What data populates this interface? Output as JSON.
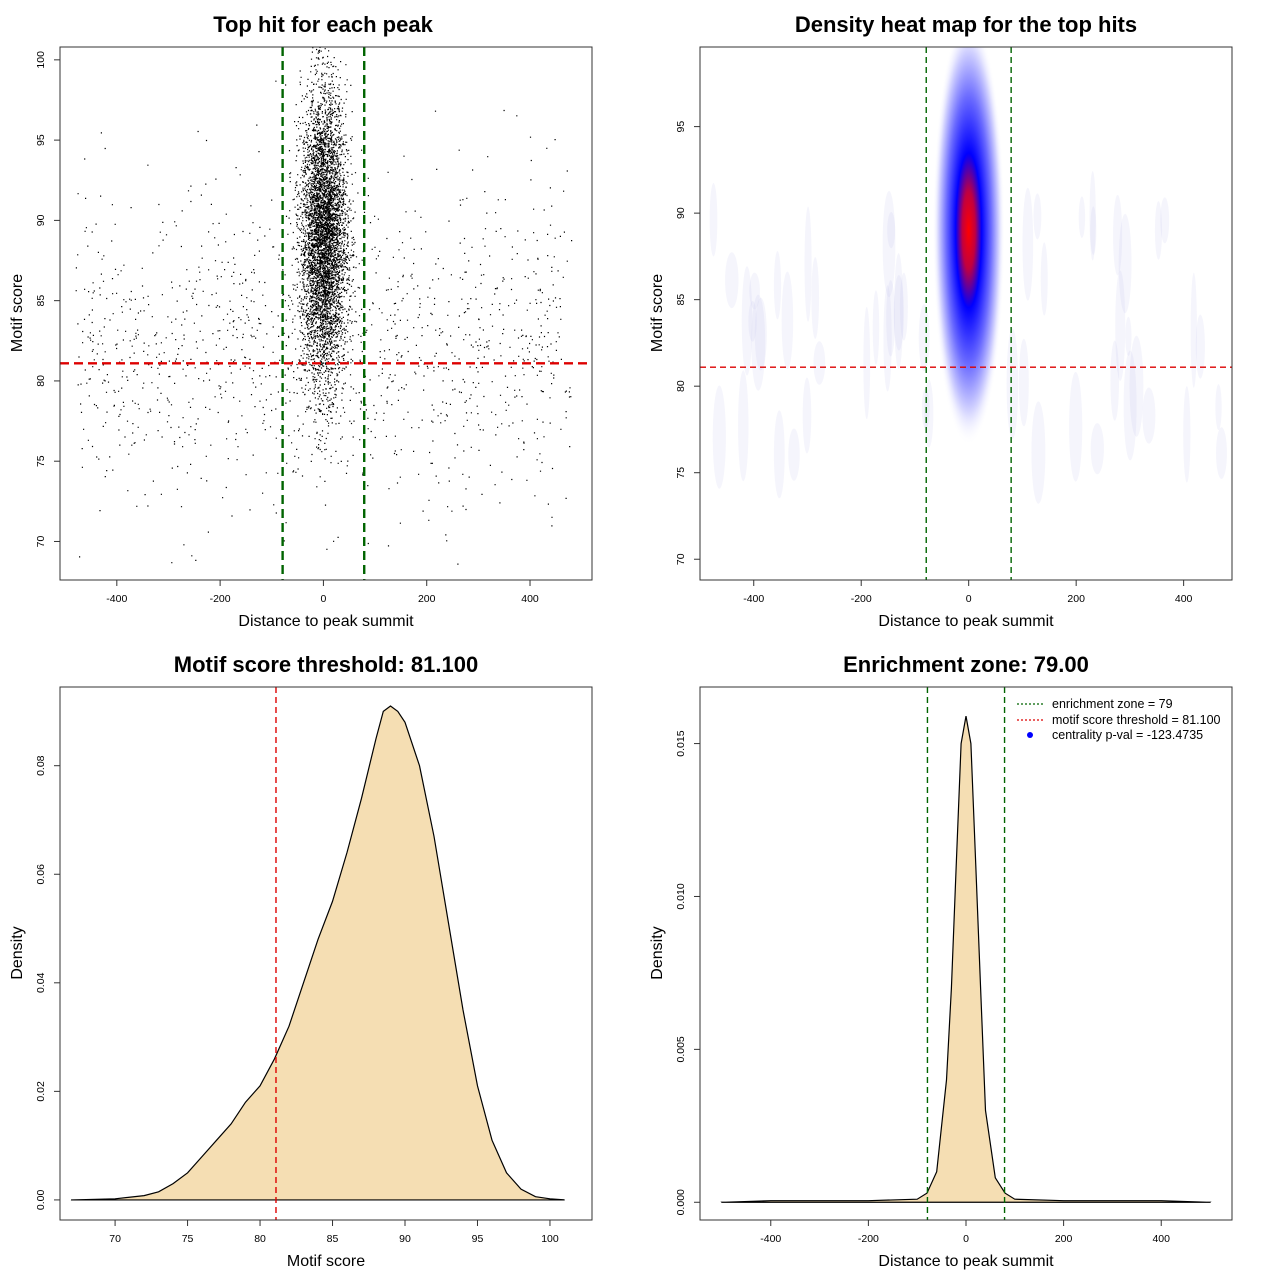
{
  "chart_data": [
    {
      "type": "scatter",
      "title": "Top hit for each peak",
      "xlabel": "Distance to peak summit",
      "ylabel": "Motif score",
      "xlim": [
        -510,
        520
      ],
      "ylim": [
        67.6,
        100.8
      ],
      "xticks": [
        -400,
        -200,
        0,
        200,
        400
      ],
      "yticks": [
        70,
        75,
        80,
        85,
        90,
        95,
        100
      ],
      "vlines": [
        -79,
        79
      ],
      "hline": 81.1,
      "vline_color": "#006400",
      "hline_color": "#dd0000",
      "point_color": "#000000",
      "background_cloud": {
        "x_range": [
          -480,
          480
        ],
        "y_mean": 82,
        "y_sd": 5
      },
      "central_cloud": {
        "x_mean": 0,
        "x_sd": 22,
        "y_mean": 89,
        "y_sd": 4.5
      }
    },
    {
      "type": "heatmap",
      "title": "Density heat map for the top hits",
      "xlabel": "Distance to peak summit",
      "ylabel": "Motif score",
      "xlim": [
        -500,
        490
      ],
      "ylim": [
        68.8,
        99.6
      ],
      "xticks": [
        -400,
        -200,
        0,
        200,
        400
      ],
      "yticks": [
        70,
        75,
        80,
        85,
        90,
        95
      ],
      "vlines": [
        -79,
        79
      ],
      "hline": 81.1,
      "peak": {
        "x": 0,
        "y": 89
      },
      "colors": [
        "#ffffff",
        "#0000ff",
        "#ff0000"
      ]
    },
    {
      "type": "area",
      "title": "Motif score threshold: 81.100",
      "xlabel": "Motif score",
      "ylabel": "Density",
      "xlim": [
        66.2,
        102.9
      ],
      "ylim": [
        -0.0037,
        0.0945
      ],
      "xticks": [
        70,
        75,
        80,
        85,
        90,
        95,
        100
      ],
      "yticks": [
        "0.00",
        "0.02",
        "0.04",
        "0.06",
        "0.08"
      ],
      "ytick_values": [
        0,
        0.02,
        0.04,
        0.06,
        0.08
      ],
      "vline": 81.1,
      "fill_color": "#f5deb3",
      "x": [
        67,
        70,
        72,
        73,
        74,
        75,
        76,
        77,
        78,
        79,
        80,
        81,
        82,
        83,
        84,
        85,
        86,
        87,
        88,
        88.5,
        89,
        89.5,
        90,
        91,
        92,
        93,
        94,
        95,
        96,
        97,
        98,
        99,
        100,
        101
      ],
      "y": [
        0,
        0.0002,
        0.0008,
        0.0015,
        0.003,
        0.005,
        0.008,
        0.011,
        0.014,
        0.018,
        0.021,
        0.026,
        0.032,
        0.04,
        0.048,
        0.055,
        0.064,
        0.074,
        0.085,
        0.09,
        0.091,
        0.09,
        0.088,
        0.08,
        0.067,
        0.051,
        0.035,
        0.021,
        0.011,
        0.005,
        0.002,
        0.0006,
        0.0002,
        0
      ]
    },
    {
      "type": "area",
      "title": "Enrichment zone: 79.00",
      "xlabel": "Distance to peak summit",
      "ylabel": "Density",
      "xlim": [
        -545,
        545
      ],
      "ylim": [
        -0.00058,
        0.01685
      ],
      "xticks": [
        -400,
        -200,
        0,
        200,
        400
      ],
      "yticks": [
        "0.000",
        "0.005",
        "0.010",
        "0.015"
      ],
      "ytick_values": [
        0,
        0.005,
        0.01,
        0.015
      ],
      "vlines": [
        -79,
        79
      ],
      "fill_color": "#f5deb3",
      "x": [
        -500,
        -400,
        -200,
        -100,
        -80,
        -60,
        -40,
        -30,
        -20,
        -10,
        0,
        10,
        20,
        30,
        40,
        60,
        80,
        100,
        200,
        400,
        500
      ],
      "y": [
        0,
        5e-05,
        5e-05,
        0.0001,
        0.0003,
        0.001,
        0.004,
        0.007,
        0.011,
        0.015,
        0.0159,
        0.015,
        0.011,
        0.007,
        0.003,
        0.0008,
        0.0003,
        0.0001,
        5e-05,
        5e-05,
        0
      ],
      "legend": [
        {
          "label": "enrichment zone = 79",
          "style": "dotted-line",
          "color": "#006400"
        },
        {
          "label": "motif score threshold = 81.100",
          "style": "dotted-line",
          "color": "#dd0000"
        },
        {
          "label": "centrality p-val = -123.4735",
          "style": "dot",
          "color": "#0000ff"
        }
      ]
    }
  ]
}
